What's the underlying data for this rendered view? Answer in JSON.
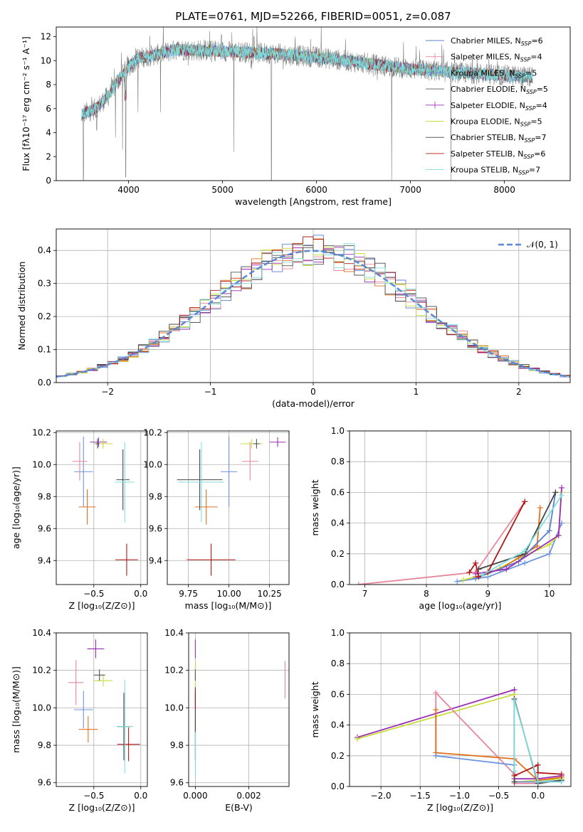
{
  "figure_title": "PLATE=0761, MJD=52266, FIBERID=0051, z=0.087",
  "colors": {
    "chabrier_miles": "#5b7fd0",
    "salpeter_miles": "#e8869a",
    "kroupa_miles": "#6e95e0",
    "chabrier_elodie": "#555555",
    "salpeter_elodie": "#9a2fb5",
    "kroupa_elodie": "#c8dc3c",
    "chabrier_stelib": "#444444",
    "salpeter_stelib": "#b01818",
    "kroupa_stelib": "#7fdde0",
    "orange": "#e0701c",
    "gauss": "#5b87d6",
    "grid": "#b0b0b0"
  },
  "chart_data": [
    {
      "id": "spectrum",
      "type": "line",
      "title": "",
      "xlabel": "wavelength [Angstrom, rest frame]",
      "ylabel": "Flux [fλ10⁻¹⁷ erg cm⁻² s⁻¹ A⁻¹]",
      "xlim": [
        3230,
        8700
      ],
      "ylim": [
        0,
        12.8
      ],
      "xticks": [
        4000,
        5000,
        6000,
        7000,
        8000
      ],
      "yticks": [
        0,
        2,
        4,
        6,
        8,
        10,
        12
      ],
      "grid": false,
      "legend_position": "top-right",
      "legend": [
        {
          "label": "Chabrier MILES, N",
          "sub": "SSP",
          "tail": "=6",
          "color": "#5b7fd0",
          "marker": "line"
        },
        {
          "label": "Salpeter MILES, N",
          "sub": "SSP",
          "tail": "=4",
          "color": "#e8869a",
          "marker": "plus"
        },
        {
          "label": "Kroupa MILES, N",
          "sub": "SSP",
          "tail": "=5",
          "color": "#6e95e0",
          "marker": "line"
        },
        {
          "label": "Chabrier ELODIE, N",
          "sub": "SSP",
          "tail": "=5",
          "color": "#555555",
          "marker": "line"
        },
        {
          "label": "Salpeter ELODIE, N",
          "sub": "SSP",
          "tail": "=4",
          "color": "#9a2fb5",
          "marker": "plus"
        },
        {
          "label": "Kroupa ELODIE, N",
          "sub": "SSP",
          "tail": "=5",
          "color": "#c8dc3c",
          "marker": "line"
        },
        {
          "label": "Chabrier STELIB, N",
          "sub": "SSP",
          "tail": "=7",
          "color": "#444444",
          "marker": "line"
        },
        {
          "label": "Salpeter STELIB, N",
          "sub": "SSP",
          "tail": "=6",
          "color": "#b01818",
          "marker": "line"
        },
        {
          "label": "Kroupa STELIB, N",
          "sub": "SSP",
          "tail": "=7",
          "color": "#7fdde0",
          "marker": "line"
        }
      ],
      "continuum": {
        "x": [
          3500,
          3650,
          3800,
          3900,
          4000,
          4100,
          4300,
          4500,
          5000,
          5500,
          6000,
          6500,
          7000,
          7500,
          8000,
          8300
        ],
        "y": [
          5.5,
          6.0,
          7.2,
          8.5,
          9.5,
          10.2,
          10.5,
          10.9,
          10.8,
          10.6,
          10.3,
          9.8,
          9.3,
          9.0,
          8.8,
          8.6
        ]
      },
      "dips": [
        {
          "x": 3520,
          "y": 0.0
        },
        {
          "x": 3660,
          "y": 4.2
        },
        {
          "x": 3860,
          "y": 3.6
        },
        {
          "x": 3935,
          "y": 2.6
        },
        {
          "x": 3970,
          "y": 0.3
        },
        {
          "x": 4100,
          "y": 5.7
        },
        {
          "x": 4340,
          "y": 5.7
        },
        {
          "x": 5120,
          "y": 2.4
        },
        {
          "x": 5520,
          "y": 0.0
        },
        {
          "x": 6800,
          "y": 0.0
        },
        {
          "x": 7430,
          "y": 0.0
        }
      ]
    },
    {
      "id": "residuals",
      "type": "histogram",
      "xlabel": "(data-model)/error",
      "ylabel": "Normed distribution",
      "xlim": [
        -2.5,
        2.5
      ],
      "ylim": [
        0,
        0.465
      ],
      "xticks": [
        -2,
        -1,
        0,
        1,
        2
      ],
      "yticks": [
        0.0,
        0.1,
        0.2,
        0.3,
        0.4
      ],
      "grid": true,
      "legend_position": "top-right",
      "legend_label": "𝒩(0, 1)",
      "gaussian": {
        "mean": 0,
        "sigma": 1
      }
    },
    {
      "id": "age_vs_Z",
      "type": "errorbar",
      "xlabel": "Z [log₁₀(Z/Z⊙)]",
      "ylabel": "age  [log₁₀(age/yr)]",
      "xlim": [
        -0.9,
        0.07
      ],
      "ylim": [
        9.25,
        10.21
      ],
      "xticks": [
        -0.5,
        0.0
      ],
      "yticks": [
        9.4,
        9.6,
        9.8,
        10.0,
        10.2
      ],
      "grid": true,
      "points": [
        {
          "c": "#6e95e0",
          "x": -0.61,
          "y": 9.955,
          "xerr": 0.1,
          "yerr": 0.22
        },
        {
          "c": "#e8869a",
          "x": -0.65,
          "y": 10.02,
          "xerr": 0.08,
          "yerr": 0.12
        },
        {
          "c": "#e0701c",
          "x": -0.57,
          "y": 9.735,
          "xerr": 0.09,
          "yerr": 0.11
        },
        {
          "c": "#9a2fb5",
          "x": -0.45,
          "y": 10.14,
          "xerr": 0.09,
          "yerr": 0.03
        },
        {
          "c": "#c8dc3c",
          "x": -0.4,
          "y": 10.13,
          "xerr": 0.1,
          "yerr": 0.03
        },
        {
          "c": "#555555",
          "x": -0.46,
          "y": 10.13,
          "xerr": 0.02,
          "yerr": 0.03
        },
        {
          "c": "#444444",
          "x": -0.19,
          "y": 9.905,
          "xerr": 0.07,
          "yerr": 0.19
        },
        {
          "c": "#b01818",
          "x": -0.15,
          "y": 9.405,
          "xerr": 0.12,
          "yerr": 0.1
        },
        {
          "c": "#7fdde0",
          "x": -0.17,
          "y": 9.89,
          "xerr": 0.1,
          "yerr": 0.25
        }
      ]
    },
    {
      "id": "age_vs_mass",
      "type": "errorbar",
      "xlabel": "mass [log₁₀(M/M⊙)]",
      "ylabel": "",
      "xlim": [
        9.62,
        10.37
      ],
      "ylim": [
        9.25,
        10.21
      ],
      "xticks": [
        9.75,
        10.0,
        10.25
      ],
      "yticks": [
        9.4,
        9.6,
        9.8,
        10.0,
        10.2
      ],
      "grid": true,
      "points": [
        {
          "c": "#6e95e0",
          "x": 10.0,
          "y": 9.955,
          "xerr": 0.05,
          "yerr": 0.22
        },
        {
          "c": "#e8869a",
          "x": 10.13,
          "y": 10.02,
          "xerr": 0.05,
          "yerr": 0.12
        },
        {
          "c": "#e0701c",
          "x": 9.86,
          "y": 9.735,
          "xerr": 0.07,
          "yerr": 0.11
        },
        {
          "c": "#9a2fb5",
          "x": 10.3,
          "y": 10.14,
          "xerr": 0.05,
          "yerr": 0.03
        },
        {
          "c": "#c8dc3c",
          "x": 10.14,
          "y": 10.13,
          "xerr": 0.07,
          "yerr": 0.03
        },
        {
          "c": "#555555",
          "x": 10.17,
          "y": 10.13,
          "xerr": 0.02,
          "yerr": 0.03
        },
        {
          "c": "#444444",
          "x": 9.82,
          "y": 9.905,
          "xerr": 0.14,
          "yerr": 0.19
        },
        {
          "c": "#b01818",
          "x": 9.89,
          "y": 9.405,
          "xerr": 0.15,
          "yerr": 0.1
        },
        {
          "c": "#7fdde0",
          "x": 9.83,
          "y": 9.89,
          "xerr": 0.14,
          "yerr": 0.25
        }
      ]
    },
    {
      "id": "massweight_vs_age",
      "type": "line",
      "xlabel": "age  [log₁₀(age/yr)]",
      "ylabel": "mass weight",
      "xlim": [
        6.75,
        10.35
      ],
      "ylim": [
        0,
        1.0
      ],
      "xticks": [
        7,
        8,
        9,
        10
      ],
      "yticks": [
        0.0,
        0.2,
        0.4,
        0.6,
        0.8,
        1.0
      ],
      "grid": true,
      "series": [
        {
          "c": "#e8869a",
          "x": [
            6.9,
            8.8,
            9.6
          ],
          "y": [
            0.0,
            0.08,
            0.54
          ]
        },
        {
          "c": "#6e95e0",
          "x": [
            8.5,
            9.0,
            9.6,
            10.0,
            10.2
          ],
          "y": [
            0.02,
            0.05,
            0.14,
            0.2,
            0.4
          ]
        },
        {
          "c": "#c8dc3c",
          "x": [
            8.6,
            9.0,
            9.5,
            10.0,
            10.15,
            10.2
          ],
          "y": [
            0.03,
            0.07,
            0.17,
            0.26,
            0.32,
            0.6
          ]
        },
        {
          "c": "#e0701c",
          "x": [
            8.8,
            9.2,
            9.8,
            9.85
          ],
          "y": [
            0.05,
            0.1,
            0.25,
            0.5
          ]
        },
        {
          "c": "#5b7fd0",
          "x": [
            8.8,
            9.5,
            10.0,
            10.1
          ],
          "y": [
            0.04,
            0.15,
            0.35,
            0.6
          ]
        },
        {
          "c": "#9a2fb5",
          "x": [
            8.8,
            9.3,
            10.15,
            10.2
          ],
          "y": [
            0.07,
            0.1,
            0.32,
            0.63
          ]
        },
        {
          "c": "#444444",
          "x": [
            8.85,
            9.6,
            10.1
          ],
          "y": [
            0.1,
            0.2,
            0.6
          ]
        },
        {
          "c": "#b01818",
          "x": [
            8.7,
            8.8,
            8.85,
            9.0,
            9.6
          ],
          "y": [
            0.08,
            0.14,
            0.05,
            0.08,
            0.54
          ]
        },
        {
          "c": "#7fdde0",
          "x": [
            8.9,
            9.6,
            10.2
          ],
          "y": [
            0.06,
            0.22,
            0.58
          ]
        }
      ]
    },
    {
      "id": "mass_vs_Z",
      "type": "errorbar",
      "xlabel": "Z [log₁₀(Z/Z⊙)]",
      "ylabel": "mass [log₁₀(M/M⊙)]",
      "xlim": [
        -0.9,
        0.07
      ],
      "ylim": [
        9.58,
        10.4
      ],
      "xticks": [
        -0.5,
        0.0
      ],
      "yticks": [
        9.6,
        9.8,
        10.0,
        10.2,
        10.4
      ],
      "grid": true,
      "points": [
        {
          "c": "#6e95e0",
          "x": -0.61,
          "y": 9.99,
          "xerr": 0.1,
          "yerr": 0.1
        },
        {
          "c": "#e8869a",
          "x": -0.69,
          "y": 10.135,
          "xerr": 0.08,
          "yerr": 0.12
        },
        {
          "c": "#e0701c",
          "x": -0.56,
          "y": 9.885,
          "xerr": 0.1,
          "yerr": 0.07
        },
        {
          "c": "#9a2fb5",
          "x": -0.48,
          "y": 10.315,
          "xerr": 0.09,
          "yerr": 0.05
        },
        {
          "c": "#c8dc3c",
          "x": -0.4,
          "y": 10.145,
          "xerr": 0.1,
          "yerr": 0.03
        },
        {
          "c": "#555555",
          "x": -0.44,
          "y": 10.175,
          "xerr": 0.06,
          "yerr": 0.03
        },
        {
          "c": "#444444",
          "x": -0.18,
          "y": 9.9,
          "xerr": 0.07,
          "yerr": 0.18
        },
        {
          "c": "#b01818",
          "x": -0.13,
          "y": 9.805,
          "xerr": 0.12,
          "yerr": 0.09
        },
        {
          "c": "#7fdde0",
          "x": -0.17,
          "y": 9.9,
          "xerr": 0.09,
          "yerr": 0.25
        }
      ]
    },
    {
      "id": "mass_vs_ebv",
      "type": "errorbar",
      "xlabel": "E(B-V)",
      "ylabel": "",
      "xlim": [
        -0.00025,
        0.0035
      ],
      "ylim": [
        9.58,
        10.4
      ],
      "xticks": [
        0.0,
        0.002
      ],
      "yticks": [
        9.6,
        9.8,
        10.0,
        10.2,
        10.4
      ],
      "grid": true,
      "points": [
        {
          "c": "#6e95e0",
          "x": 0.0,
          "y": 9.99,
          "xerr": 0.0,
          "yerr": 0.1
        },
        {
          "c": "#e8869a",
          "x": 0.00335,
          "y": 10.15,
          "xerr": 0.0,
          "yerr": 0.1
        },
        {
          "c": "#e0701c",
          "x": 0.0,
          "y": 9.885,
          "xerr": 0.0,
          "yerr": 0.07
        },
        {
          "c": "#9a2fb5",
          "x": 0.0,
          "y": 10.315,
          "xerr": 0.0,
          "yerr": 0.05
        },
        {
          "c": "#c8dc3c",
          "x": 0.0,
          "y": 10.145,
          "xerr": 0.0,
          "yerr": 0.1
        },
        {
          "c": "#555555",
          "x": 0.0,
          "y": 10.175,
          "xerr": 0.0,
          "yerr": 0.03
        },
        {
          "c": "#444444",
          "x": 0.0,
          "y": 9.9,
          "xerr": 0.0,
          "yerr": 0.18
        },
        {
          "c": "#b01818",
          "x": 0.0,
          "y": 10.05,
          "xerr": 0.0,
          "yerr": 0.06
        },
        {
          "c": "#7fdde0",
          "x": 0.0,
          "y": 9.75,
          "xerr": 0.0,
          "yerr": 0.12
        }
      ]
    },
    {
      "id": "massweight_vs_Z",
      "type": "line",
      "xlabel": "Z [log₁₀(Z/Z⊙)]",
      "ylabel": "mass weight",
      "xlim": [
        -2.4,
        0.42
      ],
      "ylim": [
        0,
        1.0
      ],
      "xticks": [
        -2.0,
        -1.5,
        -1.0,
        -0.5,
        0.0
      ],
      "yticks": [
        0.0,
        0.2,
        0.4,
        0.6,
        0.8,
        1.0
      ],
      "grid": true,
      "series": [
        {
          "c": "#9a2fb5",
          "x": [
            -2.3,
            -0.3,
            -0.3,
            0.0,
            0.3
          ],
          "y": [
            0.32,
            0.63,
            0.05,
            0.05,
            0.07
          ]
        },
        {
          "c": "#c8dc3c",
          "x": [
            -2.3,
            -0.3,
            -0.3,
            0.0,
            0.3
          ],
          "y": [
            0.31,
            0.6,
            0.03,
            0.04,
            0.05
          ]
        },
        {
          "c": "#e8869a",
          "x": [
            -1.3,
            -1.3,
            -0.3,
            -0.3,
            0.0,
            0.3
          ],
          "y": [
            0.2,
            0.61,
            0.08,
            0.02,
            0.02,
            0.04
          ]
        },
        {
          "c": "#e0701c",
          "x": [
            -1.3,
            -1.3,
            -0.3,
            0.0,
            0.3
          ],
          "y": [
            0.5,
            0.22,
            0.18,
            0.04,
            0.06
          ]
        },
        {
          "c": "#6e95e0",
          "x": [
            -1.3,
            -0.3,
            -0.3,
            0.0,
            0.3
          ],
          "y": [
            0.2,
            0.14,
            0.03,
            0.03,
            0.04
          ]
        },
        {
          "c": "#444444",
          "x": [
            -0.3,
            -0.3,
            0.0,
            0.3
          ],
          "y": [
            0.03,
            0.57,
            0.02,
            0.04
          ]
        },
        {
          "c": "#b01818",
          "x": [
            -0.3,
            0.0,
            0.0,
            0.3
          ],
          "y": [
            0.07,
            0.14,
            0.09,
            0.08
          ]
        },
        {
          "c": "#7fdde0",
          "x": [
            -0.3,
            -0.3,
            0.0,
            0.3
          ],
          "y": [
            0.1,
            0.56,
            0.03,
            0.03
          ]
        }
      ]
    }
  ]
}
